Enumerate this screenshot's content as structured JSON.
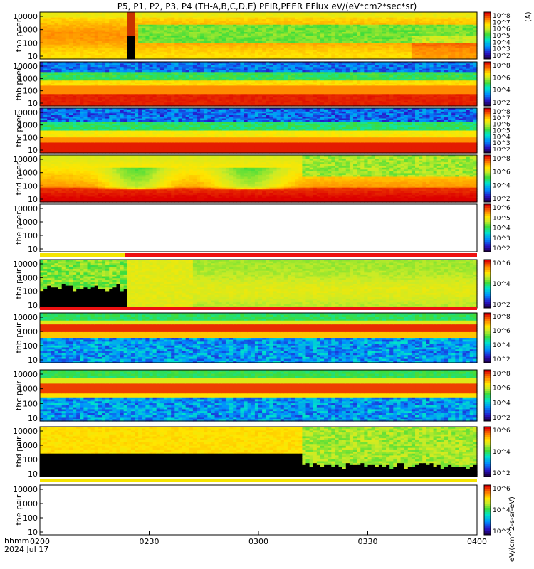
{
  "header": {
    "title": "P5, P1, P2, P3, P4 (TH-A,B,C,D,E) PEIR,PEER EFlux eV/(eV*cm2*sec*sr)"
  },
  "footer": {
    "time_label": "hhmm",
    "date_label": "2024 Jul 17"
  },
  "colors": {
    "frame": "#000000",
    "red_bar": "#ee1111",
    "yellow_bar": "#f5e400",
    "white_bar": "#ffffff",
    "fill_black": "#000000"
  },
  "chart_data": {
    "type": "heatmap",
    "title": "P5, P1, P2, P3, P4 (TH-A,B,C,D,E) PEIR,PEER EFlux eV/(eV*cm2*sec*sr)",
    "x_axis": {
      "label": "hhmm",
      "ticks": [
        "0200",
        "0230",
        "0300",
        "0330",
        "0400"
      ],
      "range": [
        "0200",
        "0400"
      ]
    },
    "y_scale": "log",
    "colorbar_scale": "log",
    "colorbar_label": "eV/(cm^2-s-sr-eV)",
    "panels": [
      {
        "id": "tha_peer",
        "label": "tha peer",
        "yticks": [
          "10",
          "100",
          "1000",
          "10000"
        ],
        "cbar_ticks": [
          "10^2",
          "10^3",
          "10^4",
          "10^5",
          "10^6",
          "10^7",
          "10^8"
        ],
        "cbar_cut": "(A)",
        "profile": "tha_peer",
        "gap": {
          "from": 0.195,
          "to": 0.215
        }
      },
      {
        "id": "thb_peer",
        "label": "thb peer",
        "yticks": [
          "10",
          "100",
          "1000",
          "10000"
        ],
        "cbar_ticks": [
          "10^2",
          "10^4",
          "10^6",
          "10^8"
        ],
        "profile": "peer_inner"
      },
      {
        "id": "thc_peer",
        "label": "thc peer",
        "yticks": [
          "10",
          "100",
          "1000",
          "10000"
        ],
        "cbar_ticks": [
          "10^2",
          "10^3",
          "10^4",
          "10^5",
          "10^6",
          "10^7",
          "10^8"
        ],
        "profile": "peer_inner2"
      },
      {
        "id": "thd_peer",
        "label": "thd peer",
        "yticks": [
          "10",
          "100",
          "1000",
          "10000"
        ],
        "cbar_ticks": [
          "10^2",
          "10^4",
          "10^6",
          "10^8"
        ],
        "profile": "thd_peer"
      },
      {
        "id": "the_peer",
        "label": "the peer",
        "yticks": [
          "10",
          "100",
          "1000",
          "10000"
        ],
        "cbar_ticks": [
          "10^2",
          "10^3",
          "10^4",
          "10^5",
          "10^6"
        ],
        "profile": "empty"
      },
      {
        "id": "tha_peir",
        "label": "tha peir",
        "yticks": [
          "10",
          "100",
          "1000",
          "10000"
        ],
        "cbar_ticks": [
          "10^2",
          "10^4",
          "10^6"
        ],
        "profile": "tha_peir",
        "flag_bar": [
          {
            "from": 0.0,
            "to": 0.195,
            "color": "#f5e400"
          },
          {
            "from": 0.195,
            "to": 1.0,
            "color": "#ee1111"
          }
        ]
      },
      {
        "id": "thb_peir",
        "label": "thb peir",
        "yticks": [
          "10",
          "100",
          "1000",
          "10000"
        ],
        "cbar_ticks": [
          "10^2",
          "10^4",
          "10^6",
          "10^8"
        ],
        "profile": "peir_inner",
        "flag_bar": [
          {
            "from": 0.0,
            "to": 1.0,
            "color": "#ee1111"
          }
        ]
      },
      {
        "id": "thc_peir",
        "label": "thc peir",
        "yticks": [
          "10",
          "100",
          "1000",
          "10000"
        ],
        "cbar_ticks": [
          "10^2",
          "10^4",
          "10^6",
          "10^8"
        ],
        "profile": "peir_inner2"
      },
      {
        "id": "thd_peir",
        "label": "thd peir",
        "yticks": [
          "10",
          "100",
          "1000",
          "10000"
        ],
        "cbar_ticks": [
          "10^2",
          "10^4",
          "10^6"
        ],
        "profile": "thd_peir"
      },
      {
        "id": "the_peir",
        "label": "the peir",
        "yticks": [
          "10",
          "100",
          "1000",
          "10000"
        ],
        "cbar_ticks": [
          "10^2",
          "10^4",
          "10^6"
        ],
        "profile": "empty",
        "flag_bar": [
          {
            "from": 0.0,
            "to": 1.0,
            "color": "#f5e400"
          }
        ]
      }
    ]
  }
}
